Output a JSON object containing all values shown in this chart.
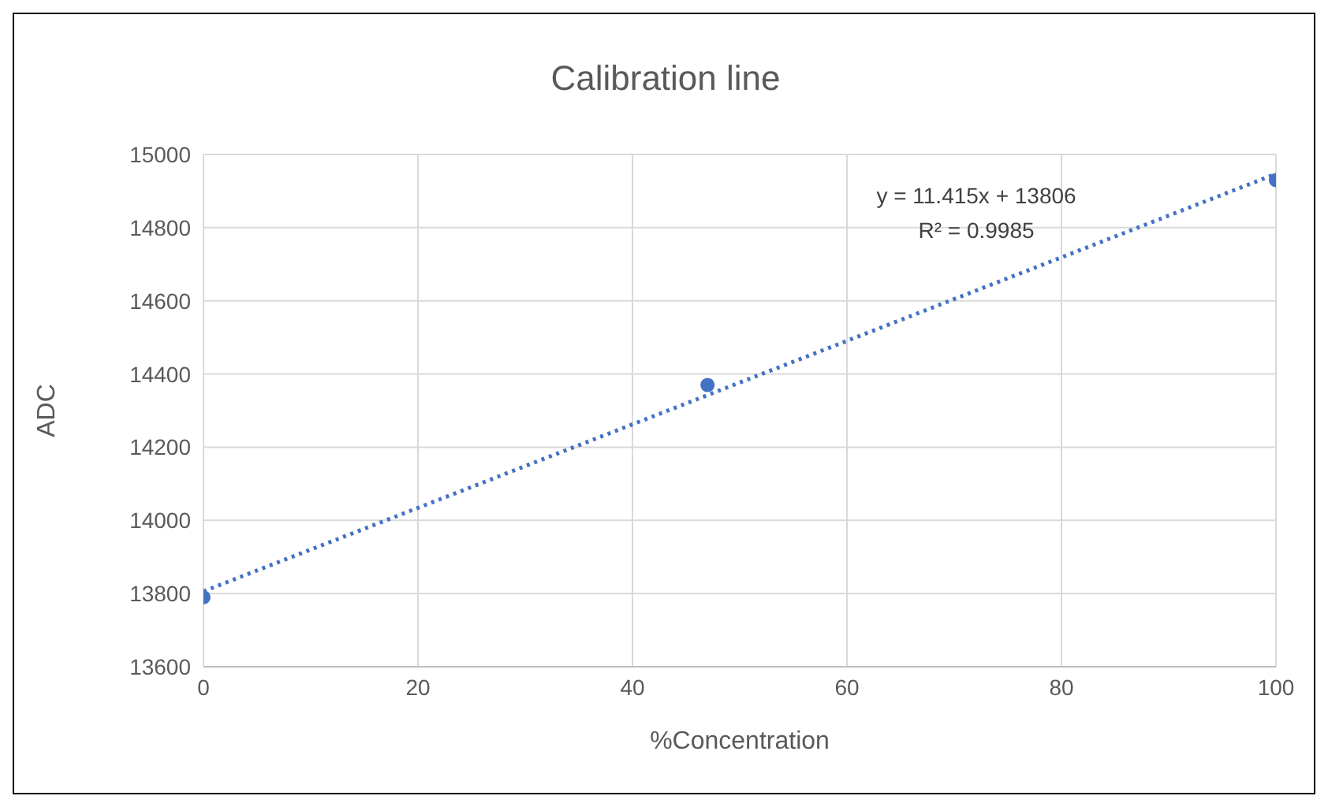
{
  "chart_data": {
    "type": "scatter",
    "title": "Calibration line",
    "xlabel": "%Concentration",
    "ylabel": "ADC",
    "series": [
      {
        "color": "#4472c4",
        "marker": "circle",
        "x": [
          0,
          47,
          100
        ],
        "values": [
          13790,
          14370,
          14930
        ]
      },
      {
        "type": "line",
        "color": "#4472c4",
        "line_style": "dotted",
        "marker": "none",
        "x": [
          0,
          100
        ],
        "values": [
          13806,
          14947
        ]
      }
    ],
    "annotations": [
      "y = 11.415x + 13806",
      "R² = 0.9985"
    ],
    "xlim": [
      0,
      100
    ],
    "xticks": [
      0,
      20,
      40,
      60,
      80,
      100
    ],
    "ylim": [
      13600,
      15000
    ],
    "yticks": [
      13600,
      13800,
      14000,
      14200,
      14400,
      14600,
      14800,
      15000
    ],
    "grid": true
  }
}
